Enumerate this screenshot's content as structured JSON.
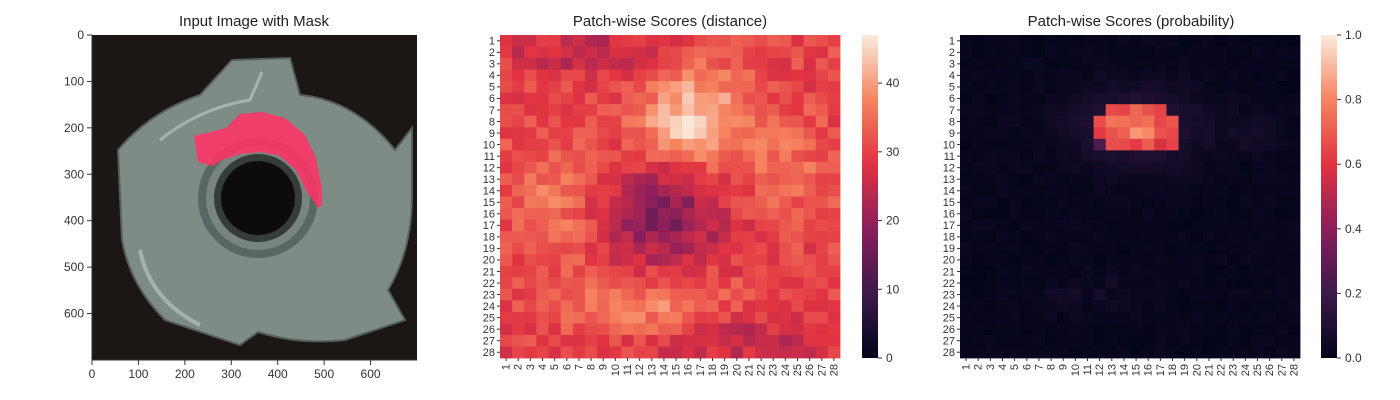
{
  "chart_data": [
    {
      "type": "image",
      "title": "Input Image with Mask",
      "xlim": [
        0,
        700
      ],
      "ylim": [
        0,
        700
      ],
      "xticks": [
        0,
        100,
        200,
        300,
        400,
        500,
        600
      ],
      "yticks": [
        0,
        100,
        200,
        300,
        400,
        500,
        600
      ],
      "overlay_color": "#ff3366",
      "background_color": "#1c1614",
      "object_color": "#7f8c86"
    },
    {
      "type": "heatmap",
      "title": "Patch-wise Scores (distance)",
      "rows": 28,
      "cols": 28,
      "labels": [
        "1",
        "2",
        "3",
        "4",
        "5",
        "6",
        "7",
        "8",
        "9",
        "10",
        "11",
        "12",
        "13",
        "14",
        "15",
        "16",
        "17",
        "18",
        "19",
        "20",
        "21",
        "22",
        "23",
        "24",
        "25",
        "26",
        "27",
        "28"
      ],
      "colorbar_range": [
        0,
        47
      ],
      "colorbar_ticks": [
        0,
        10,
        20,
        30,
        40
      ],
      "colormap": "rocket",
      "regions": [
        {
          "row": 9,
          "col": 16,
          "value": 47,
          "note": "peak"
        },
        {
          "row": 16,
          "col": 14,
          "value": 21,
          "note": "low band"
        },
        {
          "row": 24,
          "col": 13,
          "value": 38,
          "note": "secondary high"
        },
        {
          "row": 1,
          "col": 1,
          "value": 19,
          "note": "corner"
        }
      ]
    },
    {
      "type": "heatmap",
      "title": "Patch-wise Scores (probability)",
      "rows": 28,
      "cols": 28,
      "labels": [
        "1",
        "2",
        "3",
        "4",
        "5",
        "6",
        "7",
        "8",
        "9",
        "10",
        "11",
        "12",
        "13",
        "14",
        "15",
        "16",
        "17",
        "18",
        "19",
        "20",
        "21",
        "22",
        "23",
        "24",
        "25",
        "26",
        "27",
        "28"
      ],
      "colorbar_range": [
        0.0,
        1.0
      ],
      "colorbar_ticks": [
        "0.0",
        "0.2",
        "0.4",
        "0.6",
        "0.8",
        "1.0"
      ],
      "colormap": "rocket",
      "regions": [
        {
          "row": 8,
          "col": 15,
          "value": 0.75,
          "note": "hot patch"
        },
        {
          "row": 9,
          "col": 17,
          "value": 0.72
        },
        {
          "row": 10,
          "col": 14,
          "value": 0.45
        },
        {
          "row": 7,
          "col": 13,
          "value": 0.48
        },
        {
          "row": 20,
          "col": 10,
          "value": 0.0
        }
      ]
    }
  ]
}
